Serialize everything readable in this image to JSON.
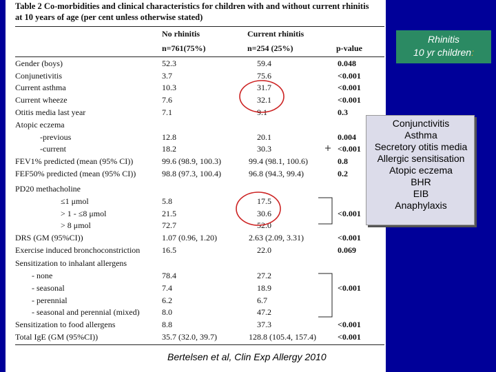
{
  "table": {
    "caption_line1": "Table 2 Co-morbidities and clinical characteristics for children with and without current rhinitis",
    "caption_line2": "at 10 years of age (per cent unless otherwise stated)",
    "headers": {
      "no_rhinitis": "No rhinitis",
      "current_rhinitis": "Current rhinitis",
      "no_rhinitis_n": "n=761(75%)",
      "current_rhinitis_n": "n=254 (25%)",
      "pvalue": "p-value"
    },
    "rows": [
      {
        "label": "Gender (boys)",
        "no": "52.3",
        "cur": "59.4",
        "p": "0.048"
      },
      {
        "label": "Conjunetivitis",
        "no": "3.7",
        "cur": "75.6",
        "p": "<0.001"
      },
      {
        "label": "Current asthma",
        "no": "10.3",
        "cur": "31.7",
        "p": "<0.001"
      },
      {
        "label": "Current wheeze",
        "no": "7.6",
        "cur": "32.1",
        "p": "<0.001"
      },
      {
        "label": "Otitis media last year",
        "no": "7.1",
        "cur": "9.1",
        "p": "0.3"
      },
      {
        "label": "Atopic eczema",
        "no": "",
        "cur": "",
        "p": ""
      },
      {
        "label": "-previous",
        "no": "12.8",
        "cur": "20.1",
        "p": "0.004"
      },
      {
        "label": "-current",
        "no": "18.2",
        "cur": "30.3",
        "p": "<0.001"
      },
      {
        "label": "FEV1% predicted (mean (95% CI))",
        "no": "99.6 (98.9, 100.3)",
        "cur": "99.4 (98.1, 100.6)",
        "p": "0.8"
      },
      {
        "label": "FEF50% predicted (mean (95% CI))",
        "no": "98.8 (97.3, 100.4)",
        "cur": "96.8 (94.3, 99.4)",
        "p": "0.2"
      },
      {
        "label": "PD20 methacholine",
        "no": "",
        "cur": "",
        "p": ""
      },
      {
        "label": "≤1 μmol",
        "no": "5.8",
        "cur": "17.5",
        "p": ""
      },
      {
        "label": "> 1 - ≤8 μmol",
        "no": "21.5",
        "cur": "30.6",
        "p": "<0.001"
      },
      {
        "label": "> 8 μmol",
        "no": "72.7",
        "cur": "52.0",
        "p": ""
      },
      {
        "label": "DRS (GM (95%CI))",
        "no": "1.07 (0.96, 1.20)",
        "cur": "2.63 (2.09, 3.31)",
        "p": "<0.001"
      },
      {
        "label": "Exercise induced bronchoconstriction",
        "no": "16.5",
        "cur": "22.0",
        "p": "0.069"
      },
      {
        "label": "Sensitization to inhalant allergens",
        "no": "",
        "cur": "",
        "p": ""
      },
      {
        "label": "- none",
        "no": "78.4",
        "cur": "27.2",
        "p": ""
      },
      {
        "label": "- seasonal",
        "no": "7.4",
        "cur": "18.9",
        "p": "<0.001"
      },
      {
        "label": "- perennial",
        "no": "6.2",
        "cur": "6.7",
        "p": ""
      },
      {
        "label": "- seasonal and perennial (mixed)",
        "no": "8.0",
        "cur": "47.2",
        "p": ""
      },
      {
        "label": "Sensitization to food allergens",
        "no": "8.8",
        "cur": "37.3",
        "p": "<0.001"
      },
      {
        "label": "Total IgE (GM (95%CI))",
        "no": "35.7 (32.0, 39.7)",
        "cur": "128.8 (105.4, 157.4)",
        "p": "<0.001"
      }
    ]
  },
  "citation": "Bertelsen et al, Clin Exp Allergy 2010",
  "rhinitis_box": {
    "line1": "Rhinitis",
    "line2": "10 yr children",
    "colon": ":"
  },
  "comorbidity_list": [
    "Conjunctivitis",
    "Asthma",
    "Secretory otitis media",
    "Allergic sensitisation",
    "Atopic eczema",
    "BHR",
    "EIB",
    "Anaphylaxis"
  ],
  "colors": {
    "background": "#000099",
    "green_box": "#2b8a63",
    "list_box": "#dcdcea",
    "highlight_circle": "#cc2222"
  }
}
